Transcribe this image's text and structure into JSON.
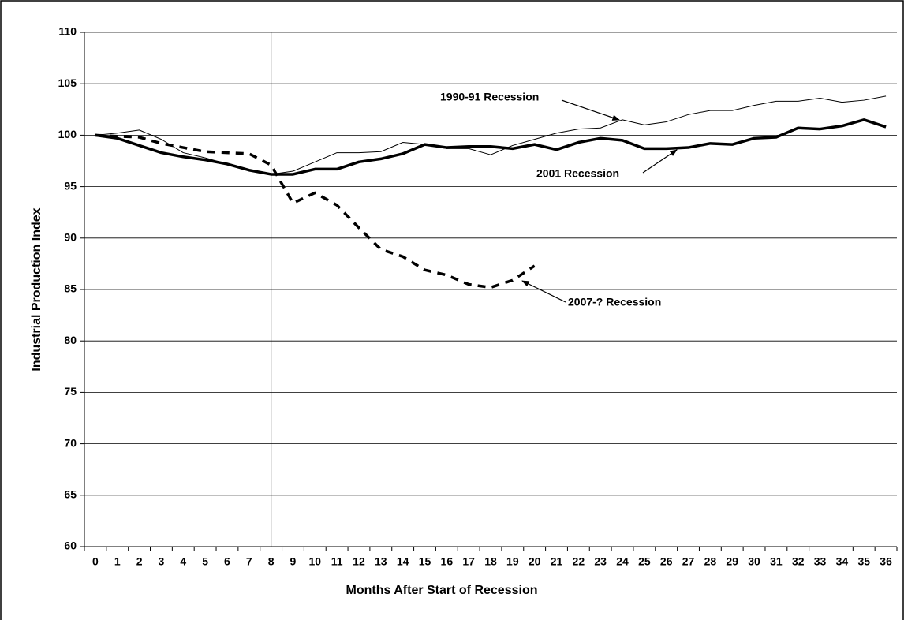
{
  "chart_data": {
    "type": "line",
    "x_label": "Months After Start of Recession",
    "y_label": "Industrial Production Index",
    "categories": [
      "0",
      "1",
      "2",
      "3",
      "4",
      "5",
      "6",
      "7",
      "8",
      "9",
      "10",
      "11",
      "12",
      "13",
      "14",
      "15",
      "16",
      "17",
      "18",
      "19",
      "20",
      "21",
      "22",
      "23",
      "24",
      "25",
      "26",
      "27",
      "28",
      "29",
      "30",
      "31",
      "32",
      "33",
      "34",
      "35",
      "36"
    ],
    "series": [
      {
        "name": "1990-91 Recession",
        "color": "#000000",
        "line_width": 1,
        "dashed": false,
        "values": [
          100,
          100.2,
          100.5,
          99.6,
          98.3,
          97.8,
          97.2,
          96.6,
          96.2,
          96.5,
          97.4,
          98.3,
          98.3,
          98.4,
          99.3,
          99.1,
          98.7,
          98.7,
          98.1,
          99.0,
          99.6,
          100.2,
          100.6,
          100.7,
          101.5,
          101.0,
          101.3,
          102.0,
          102.4,
          102.4,
          102.9,
          103.3,
          103.3,
          103.6,
          103.2,
          103.4,
          103.8
        ]
      },
      {
        "name": "2001 Recession",
        "color": "#000000",
        "line_width": 3.5,
        "dashed": false,
        "values": [
          100,
          99.7,
          99.0,
          98.3,
          97.9,
          97.6,
          97.2,
          96.6,
          96.2,
          96.2,
          96.7,
          96.7,
          97.4,
          97.7,
          98.2,
          99.1,
          98.8,
          98.9,
          98.9,
          98.7,
          99.1,
          98.6,
          99.3,
          99.7,
          99.5,
          98.7,
          98.7,
          98.8,
          99.2,
          99.1,
          99.7,
          99.8,
          100.7,
          100.6,
          100.9,
          101.5,
          100.8
        ]
      },
      {
        "name": "2007-? Recession",
        "color": "#000000",
        "line_width": 3.5,
        "dashed": true,
        "values": [
          100,
          99.9,
          99.8,
          99.2,
          98.8,
          98.4,
          98.3,
          98.2,
          97.1,
          93.4,
          94.4,
          93.2,
          91.0,
          88.9,
          88.2,
          86.9,
          86.4,
          85.5,
          85.2,
          85.9,
          87.3,
          null,
          null,
          null,
          null,
          null,
          null,
          null,
          null,
          null,
          null,
          null,
          null,
          null,
          null,
          null,
          null
        ]
      }
    ],
    "ylim": [
      60,
      110
    ],
    "yticks": [
      60,
      65,
      70,
      75,
      80,
      85,
      90,
      95,
      100,
      105,
      110
    ],
    "grid": true,
    "vline_category": 8
  }
}
